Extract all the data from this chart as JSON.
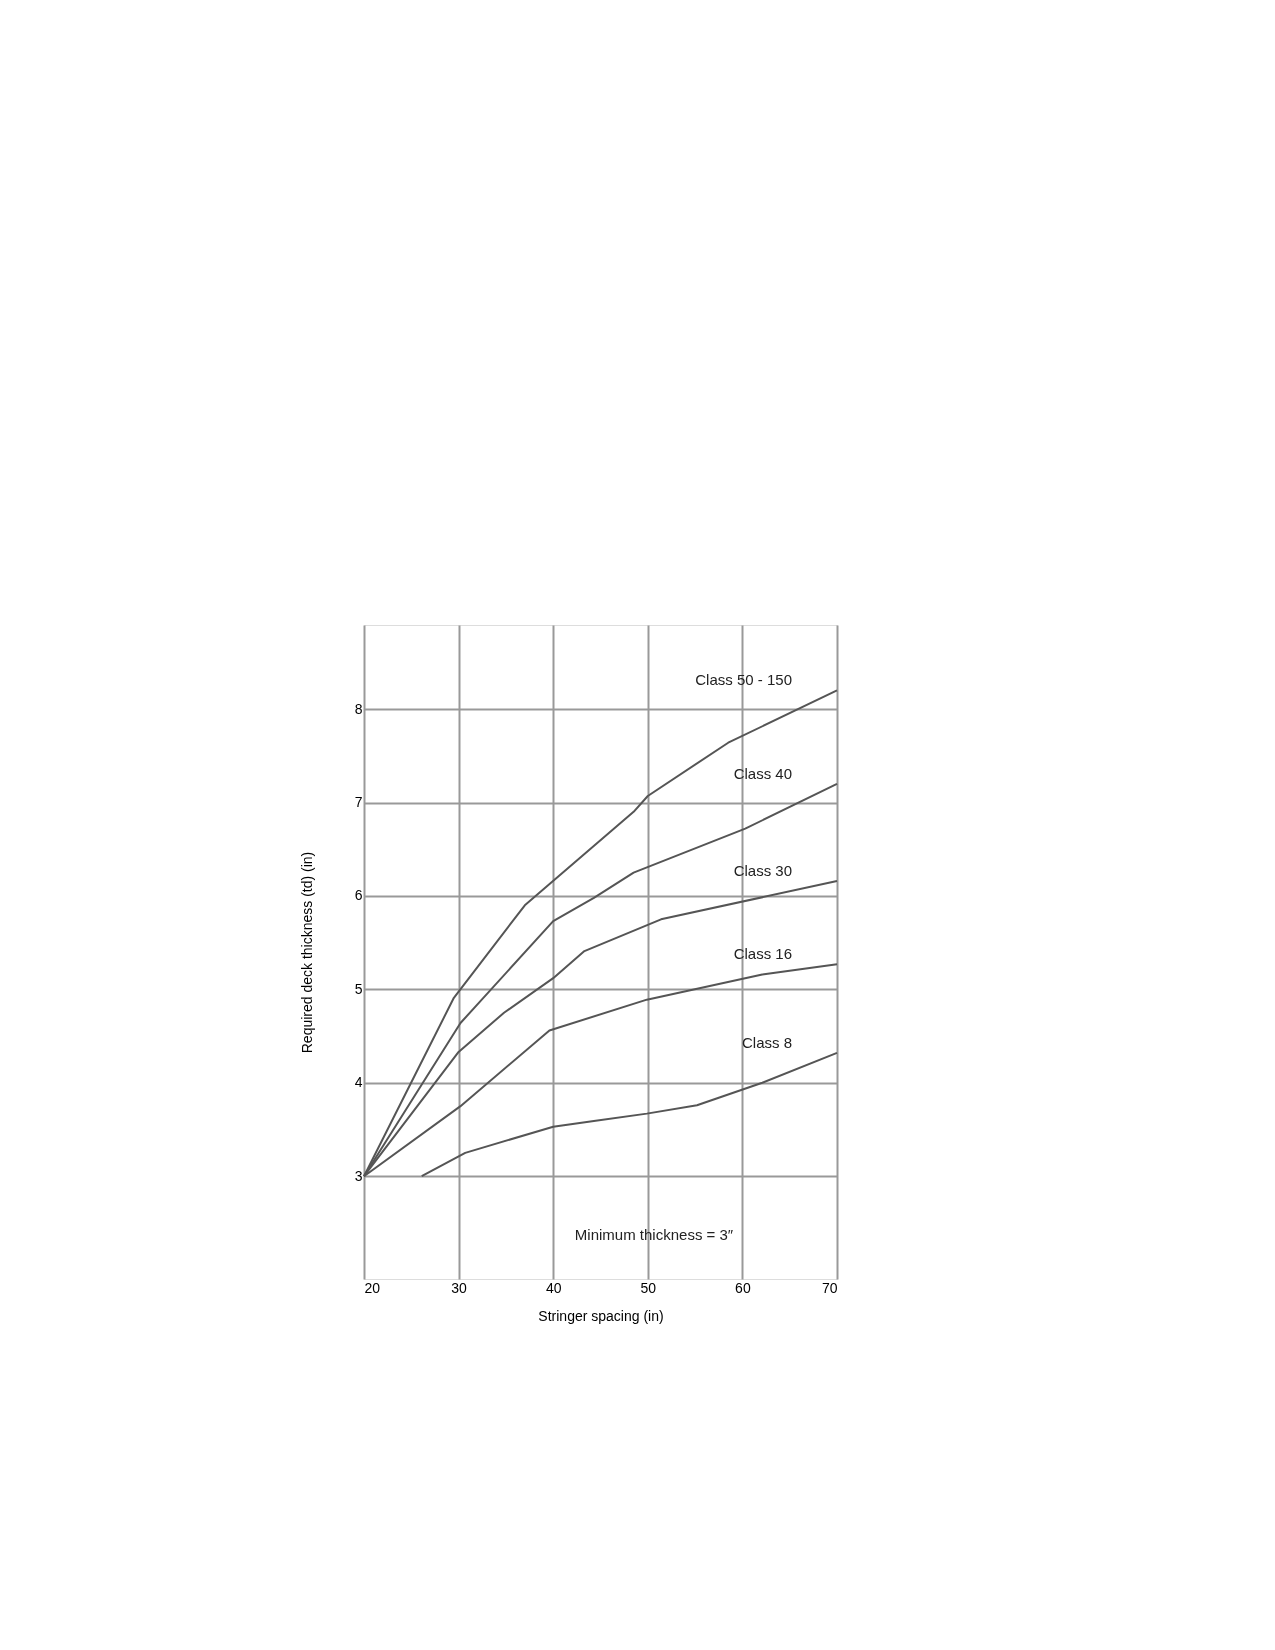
{
  "chart_data": {
    "type": "line",
    "xlabel": "Stringer spacing (in)",
    "ylabel": "Required deck thickness (td) (in)",
    "xlim": [
      20,
      70
    ],
    "xticks": [
      20,
      30,
      40,
      50,
      60,
      70
    ],
    "ylim": [
      1.9,
      8.9
    ],
    "yticks": [
      3,
      4,
      5,
      6,
      7,
      8
    ],
    "grid": true,
    "marker": "none",
    "line_style": "solid",
    "annotations": [
      "Minimum thickness = 3″"
    ],
    "series": [
      {
        "name": "Class 50 - 150",
        "color": "#555555",
        "x": [
          20,
          29.5,
          37.0,
          48.5,
          50,
          58.5,
          70
        ],
        "values": [
          3,
          4.91,
          5.9,
          6.9,
          7.07,
          7.64,
          8.2
        ]
      },
      {
        "name": "Class 40",
        "color": "#555555",
        "x": [
          20,
          30.2,
          40,
          44.3,
          48.5,
          60.3,
          70
        ],
        "values": [
          3,
          4.64,
          5.73,
          5.98,
          6.25,
          6.72,
          7.2
        ]
      },
      {
        "name": "Class 30",
        "color": "#555555",
        "x": [
          20,
          30,
          34.8,
          40,
          43.3,
          51.4,
          70
        ],
        "values": [
          3,
          4.33,
          4.75,
          5.12,
          5.41,
          5.75,
          6.16
        ]
      },
      {
        "name": "Class 16",
        "color": "#555555",
        "x": [
          20,
          30.2,
          39.6,
          49.9,
          62.1,
          70
        ],
        "values": [
          3,
          3.75,
          4.56,
          4.89,
          5.16,
          5.27
        ]
      },
      {
        "name": "Class 8",
        "color": "#555555",
        "x": [
          26.1,
          30.7,
          40,
          44.3,
          49.9,
          55.2,
          62.1,
          70
        ],
        "values": [
          3,
          3.25,
          3.53,
          3.59,
          3.67,
          3.76,
          4.0,
          4.32
        ]
      }
    ]
  }
}
